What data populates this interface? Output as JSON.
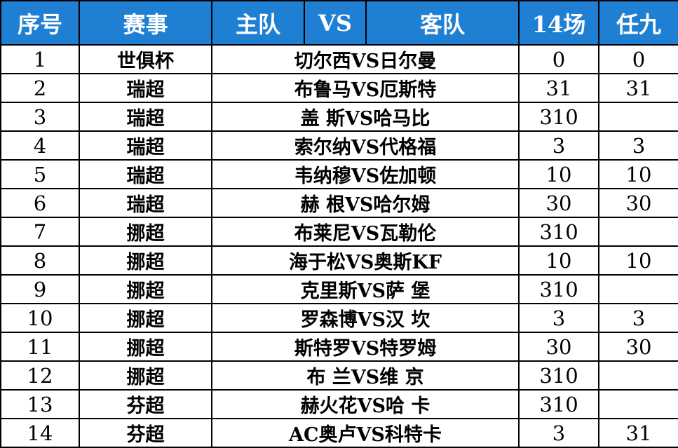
{
  "header": {
    "index": "序号",
    "league": "赛事",
    "home": "主队",
    "vs": "VS",
    "away": "客队",
    "s14": "14场",
    "r9": "任九"
  },
  "rows": [
    {
      "index": "1",
      "league": "世俱杯",
      "match": "切尔西VS日尔曼",
      "s14": "0",
      "r9": "0"
    },
    {
      "index": "2",
      "league": "瑞超",
      "match": "布鲁马VS厄斯特",
      "s14": "31",
      "r9": "31"
    },
    {
      "index": "3",
      "league": "瑞超",
      "match": "盖 斯VS哈马比",
      "s14": "310",
      "r9": ""
    },
    {
      "index": "4",
      "league": "瑞超",
      "match": "索尔纳VS代格福",
      "s14": "3",
      "r9": "3"
    },
    {
      "index": "5",
      "league": "瑞超",
      "match": "韦纳穆VS佐加顿",
      "s14": "10",
      "r9": "10"
    },
    {
      "index": "6",
      "league": "瑞超",
      "match": "赫 根VS哈尔姆",
      "s14": "30",
      "r9": "30"
    },
    {
      "index": "7",
      "league": "挪超",
      "match": "布莱尼VS瓦勒伦",
      "s14": "310",
      "r9": ""
    },
    {
      "index": "8",
      "league": "挪超",
      "match": "海于松VS奥斯KF",
      "s14": "10",
      "r9": "10"
    },
    {
      "index": "9",
      "league": "挪超",
      "match": "克里斯VS萨 堡",
      "s14": "310",
      "r9": ""
    },
    {
      "index": "10",
      "league": "挪超",
      "match": "罗森博VS汉 坎",
      "s14": "3",
      "r9": "3"
    },
    {
      "index": "11",
      "league": "挪超",
      "match": "斯特罗VS特罗姆",
      "s14": "30",
      "r9": "30"
    },
    {
      "index": "12",
      "league": "挪超",
      "match": "布 兰VS维 京",
      "s14": "310",
      "r9": ""
    },
    {
      "index": "13",
      "league": "芬超",
      "match": "赫火花VS哈 卡",
      "s14": "310",
      "r9": ""
    },
    {
      "index": "14",
      "league": "芬超",
      "match": "AC奥卢VS科特卡",
      "s14": "3",
      "r9": "31"
    }
  ]
}
